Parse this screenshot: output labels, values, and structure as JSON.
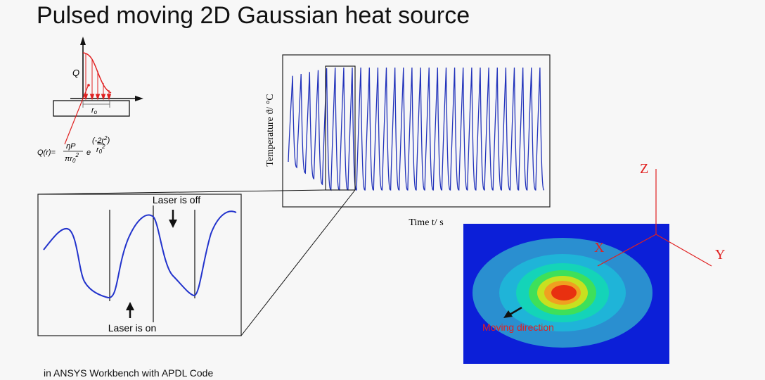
{
  "title": "Pulsed moving 2D Gaussian heat source",
  "footer": "in ANSYS Workbench with APDL Code",
  "heat_source_sketch": {
    "q_label": "Q",
    "radius_label": "r",
    "radius_sub": "o",
    "formula": {
      "lhs": "Q(r)=",
      "numerator": "ηP",
      "denominator_base": "πr",
      "denominator_sub": "0",
      "denominator_sup": "2",
      "exp_base": "e",
      "exp_num_open": "(-",
      "exp_num_var": "2r",
      "exp_num_sup": "2",
      "exp_num_close": ")",
      "exp_den_base": "r",
      "exp_den_sub": "0",
      "exp_den_sup": "2"
    },
    "colors": {
      "profile": "#e02020"
    }
  },
  "temperature_plot": {
    "ylabel": "Temperature ϑ/ °C",
    "xlabel": "Time t/ s",
    "colors": {
      "line": "#2233bb"
    }
  },
  "zoom_panel": {
    "laser_off_label": "Laser is off",
    "laser_on_label": "Laser is on"
  },
  "contour_view": {
    "axis_z": "Z",
    "axis_x": "X",
    "axis_y": "Y",
    "moving_label": "Moving direction",
    "colors": {
      "background": "#0c1fd8",
      "axes": "#e02020",
      "rings": [
        "#2a8fd0",
        "#1fb4d8",
        "#14d4b8",
        "#3ee05a",
        "#c8e020",
        "#f0a020",
        "#e83010"
      ]
    }
  },
  "colors": {
    "background": "#f7f7f7",
    "text": "#111111"
  }
}
